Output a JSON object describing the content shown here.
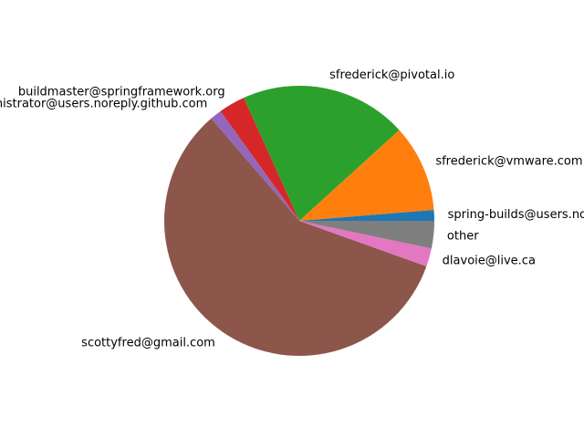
{
  "chart_data": {
    "type": "pie",
    "start_angle_deg": 0,
    "direction": "counterclockwise",
    "slices": [
      {
        "label": "spring-builds@users.noreply.github.com",
        "value": 1.3,
        "color": "#1f77b4"
      },
      {
        "label": "sfrederick@vmware.com",
        "value": 10.5,
        "color": "#ff7f0e"
      },
      {
        "label": "sfrederick@pivotal.io",
        "value": 20.1,
        "color": "#2ca02c"
      },
      {
        "label": "buildmaster@springframework.org",
        "value": 3.2,
        "color": "#d62728"
      },
      {
        "label": "administrator@users.noreply.github.com",
        "value": 1.4,
        "color": "#9467bd"
      },
      {
        "label": "scottyfred@gmail.com",
        "value": 58.5,
        "color": "#8c564b"
      },
      {
        "label": "dlavoie@live.ca",
        "value": 2.2,
        "color": "#e377c2"
      },
      {
        "label": "other",
        "value": 3.3,
        "color": "#7f7f7f"
      }
    ]
  }
}
